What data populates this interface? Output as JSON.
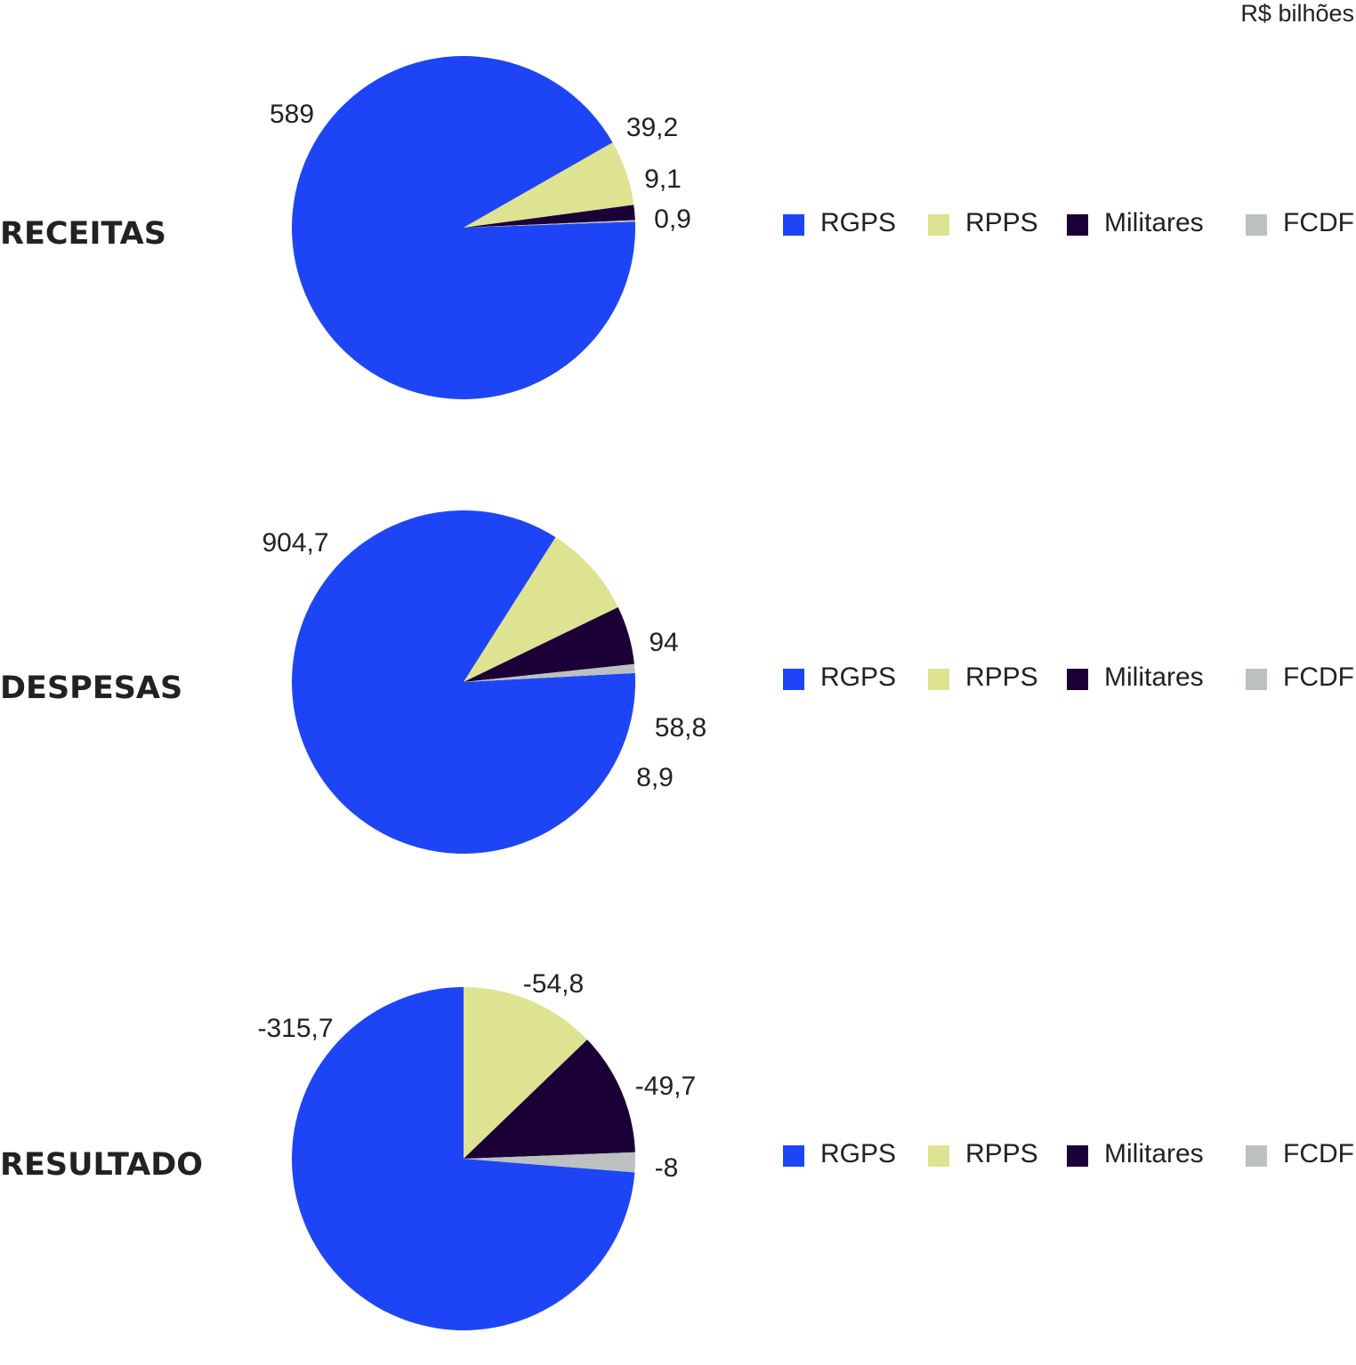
{
  "unit_label": "R$ bilhões",
  "chart_data": [
    {
      "type": "pie",
      "title": "RECEITAS",
      "categories": [
        "RGPS",
        "RPPS",
        "Militares",
        "FCDF"
      ],
      "values": [
        589,
        39.2,
        9.1,
        0.9
      ],
      "value_labels": [
        "589",
        "39,2",
        "9,1",
        "0,9"
      ],
      "colors": [
        "#1e45f5",
        "#dde390",
        "#1b0038",
        "#bcc0c0"
      ],
      "legend": {
        "position": "right",
        "entries": [
          "RGPS",
          "RPPS",
          "Militares",
          "FCDF"
        ]
      }
    },
    {
      "type": "pie",
      "title": "DESPESAS",
      "categories": [
        "RGPS",
        "RPPS",
        "Militares",
        "FCDF"
      ],
      "values": [
        904.7,
        94,
        58.8,
        8.9
      ],
      "value_labels": [
        "904,7",
        "94",
        "58,8",
        "8,9"
      ],
      "colors": [
        "#1e45f5",
        "#dde390",
        "#1b0038",
        "#bcc0c0"
      ],
      "legend": {
        "position": "right",
        "entries": [
          "RGPS",
          "RPPS",
          "Militares",
          "FCDF"
        ]
      }
    },
    {
      "type": "pie",
      "title": "RESULTADO",
      "categories": [
        "RGPS",
        "RPPS",
        "Militares",
        "FCDF"
      ],
      "values": [
        -315.7,
        -54.8,
        -49.7,
        -8
      ],
      "value_labels": [
        "-315,7",
        "-54,8",
        "-49,7",
        "-8"
      ],
      "colors": [
        "#1e45f5",
        "#dde390",
        "#1b0038",
        "#bcc0c0"
      ],
      "legend": {
        "position": "right",
        "entries": [
          "RGPS",
          "RPPS",
          "Militares",
          "FCDF"
        ]
      }
    }
  ]
}
